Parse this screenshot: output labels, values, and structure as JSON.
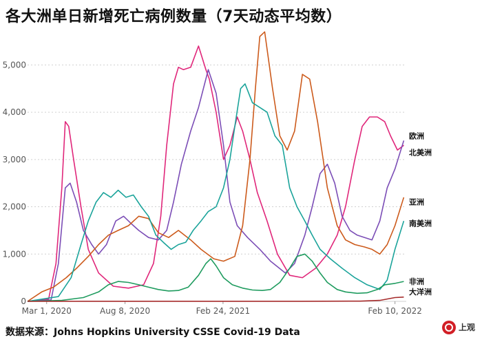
{
  "title": "各大洲单日新增死亡病例数量（7天动态平均数）",
  "source": "数据来源：Johns Hopkins University CSSE Covid-19 Data",
  "logo": {
    "text": "上观"
  },
  "chart_data": {
    "type": "line",
    "title": "各大洲单日新增死亡病例数量（7天动态平均数）",
    "xlabel": "",
    "ylabel": "",
    "ylim": [
      0,
      5500
    ],
    "yticks": [
      0,
      1000,
      2000,
      3000,
      4000,
      5000
    ],
    "ytick_labels": [
      "0",
      "1,000",
      "2,000",
      "3,000",
      "4,000",
      "5,000"
    ],
    "xlim": [
      "2020-01-22",
      "2022-03-05"
    ],
    "xticks": [
      "2020-03-01",
      "2020-08-08",
      "2021-02-24",
      "2022-02-10"
    ],
    "xtick_labels": [
      "Mar 1, 2020",
      "Aug 8, 2020",
      "Feb 24, 2021",
      "Feb 10, 2022"
    ],
    "grid": true,
    "series": [
      {
        "name": "欧洲",
        "color": "#e0267a",
        "x": [
          "2020-01-22",
          "2020-03-05",
          "2020-03-20",
          "2020-04-01",
          "2020-04-08",
          "2020-04-15",
          "2020-04-25",
          "2020-05-10",
          "2020-05-25",
          "2020-06-15",
          "2020-07-15",
          "2020-08-15",
          "2020-09-15",
          "2020-10-05",
          "2020-10-20",
          "2020-11-01",
          "2020-11-15",
          "2020-11-25",
          "2020-12-05",
          "2020-12-20",
          "2021-01-05",
          "2021-01-20",
          "2021-01-27",
          "2021-02-10",
          "2021-02-25",
          "2021-03-10",
          "2021-03-25",
          "2021-04-05",
          "2021-04-20",
          "2021-05-05",
          "2021-05-25",
          "2021-06-15",
          "2021-07-10",
          "2021-08-05",
          "2021-09-01",
          "2021-09-25",
          "2021-10-15",
          "2021-11-01",
          "2021-11-20",
          "2021-12-05",
          "2021-12-20",
          "2022-01-05",
          "2022-01-20",
          "2022-02-01",
          "2022-02-15",
          "2022-02-28"
        ],
        "y": [
          0,
          50,
          800,
          2400,
          3800,
          3700,
          3000,
          2000,
          1100,
          600,
          320,
          280,
          350,
          800,
          1800,
          3300,
          4600,
          4950,
          4900,
          4950,
          5400,
          4900,
          4700,
          4000,
          3000,
          3300,
          3900,
          3600,
          3000,
          2300,
          1700,
          1000,
          550,
          500,
          700,
          1000,
          1400,
          2000,
          3000,
          3700,
          3900,
          3900,
          3800,
          3500,
          3200,
          3300
        ]
      },
      {
        "name": "北美洲",
        "color": "#7b4db6",
        "x": [
          "2020-01-22",
          "2020-03-10",
          "2020-03-25",
          "2020-04-08",
          "2020-04-18",
          "2020-05-01",
          "2020-05-15",
          "2020-06-01",
          "2020-06-15",
          "2020-07-01",
          "2020-07-20",
          "2020-08-05",
          "2020-08-20",
          "2020-09-05",
          "2020-09-25",
          "2020-10-15",
          "2020-11-01",
          "2020-11-15",
          "2020-12-01",
          "2020-12-20",
          "2021-01-05",
          "2021-01-15",
          "2021-01-25",
          "2021-02-10",
          "2021-02-25",
          "2021-03-10",
          "2021-03-25",
          "2021-04-15",
          "2021-05-10",
          "2021-06-01",
          "2021-07-01",
          "2021-07-20",
          "2021-08-10",
          "2021-08-25",
          "2021-09-10",
          "2021-09-25",
          "2021-10-10",
          "2021-10-25",
          "2021-11-10",
          "2021-11-25",
          "2021-12-10",
          "2021-12-25",
          "2022-01-10",
          "2022-01-25",
          "2022-02-10",
          "2022-02-28"
        ],
        "y": [
          0,
          30,
          800,
          2400,
          2500,
          2100,
          1500,
          1200,
          1000,
          1200,
          1700,
          1800,
          1650,
          1500,
          1350,
          1300,
          1500,
          2100,
          2900,
          3600,
          4100,
          4500,
          4900,
          4400,
          3300,
          2100,
          1600,
          1350,
          1100,
          850,
          600,
          800,
          1400,
          2000,
          2700,
          2900,
          2500,
          1800,
          1500,
          1400,
          1350,
          1300,
          1700,
          2400,
          2800,
          3400
        ]
      },
      {
        "name": "亚洲",
        "color": "#cc5a1b",
        "x": [
          "2020-01-22",
          "2020-02-20",
          "2020-03-15",
          "2020-04-10",
          "2020-05-01",
          "2020-05-25",
          "2020-06-15",
          "2020-07-05",
          "2020-07-25",
          "2020-08-15",
          "2020-09-05",
          "2020-09-25",
          "2020-10-15",
          "2020-11-05",
          "2020-11-25",
          "2020-12-20",
          "2021-01-10",
          "2021-02-05",
          "2021-02-25",
          "2021-03-20",
          "2021-04-05",
          "2021-04-20",
          "2021-05-01",
          "2021-05-10",
          "2021-05-20",
          "2021-06-05",
          "2021-06-20",
          "2021-07-05",
          "2021-07-20",
          "2021-08-05",
          "2021-08-20",
          "2021-09-05",
          "2021-09-25",
          "2021-10-15",
          "2021-11-01",
          "2021-11-20",
          "2021-12-10",
          "2021-12-25",
          "2022-01-10",
          "2022-01-25",
          "2022-02-10",
          "2022-02-28"
        ],
        "y": [
          0,
          200,
          300,
          500,
          700,
          950,
          1200,
          1400,
          1500,
          1600,
          1800,
          1750,
          1450,
          1350,
          1500,
          1300,
          1100,
          900,
          850,
          950,
          1600,
          3000,
          4500,
          5600,
          5700,
          4500,
          3500,
          3200,
          3600,
          4800,
          4700,
          3800,
          2400,
          1600,
          1300,
          1200,
          1150,
          1100,
          1000,
          1200,
          1600,
          2200
        ]
      },
      {
        "name": "南美洲",
        "color": "#1aa39a",
        "x": [
          "2020-01-22",
          "2020-03-25",
          "2020-04-20",
          "2020-05-10",
          "2020-05-25",
          "2020-06-10",
          "2020-06-25",
          "2020-07-10",
          "2020-07-25",
          "2020-08-10",
          "2020-08-25",
          "2020-09-10",
          "2020-09-25",
          "2020-10-10",
          "2020-10-25",
          "2020-11-10",
          "2020-11-25",
          "2020-12-10",
          "2020-12-25",
          "2021-01-10",
          "2021-01-25",
          "2021-02-10",
          "2021-02-25",
          "2021-03-10",
          "2021-03-20",
          "2021-04-01",
          "2021-04-10",
          "2021-04-25",
          "2021-05-10",
          "2021-05-25",
          "2021-06-10",
          "2021-06-25",
          "2021-07-10",
          "2021-07-25",
          "2021-08-10",
          "2021-08-25",
          "2021-09-10",
          "2021-10-01",
          "2021-10-25",
          "2021-11-20",
          "2021-12-15",
          "2022-01-10",
          "2022-01-25",
          "2022-02-10",
          "2022-02-28"
        ],
        "y": [
          0,
          100,
          500,
          1200,
          1700,
          2100,
          2300,
          2200,
          2350,
          2200,
          2250,
          2000,
          1800,
          1400,
          1250,
          1100,
          1200,
          1250,
          1500,
          1700,
          1900,
          2000,
          2400,
          3000,
          3700,
          4500,
          4600,
          4200,
          4100,
          4000,
          3500,
          3300,
          2400,
          2000,
          1700,
          1400,
          1100,
          900,
          700,
          500,
          350,
          250,
          450,
          1100,
          1700
        ]
      },
      {
        "name": "非洲",
        "color": "#1e9b5e",
        "x": [
          "2020-01-22",
          "2020-04-01",
          "2020-05-15",
          "2020-06-15",
          "2020-07-05",
          "2020-07-25",
          "2020-08-15",
          "2020-09-05",
          "2020-09-25",
          "2020-10-15",
          "2020-11-05",
          "2020-11-25",
          "2020-12-15",
          "2021-01-05",
          "2021-01-20",
          "2021-01-30",
          "2021-02-10",
          "2021-02-25",
          "2021-03-15",
          "2021-04-05",
          "2021-04-25",
          "2021-05-15",
          "2021-06-01",
          "2021-06-20",
          "2021-07-10",
          "2021-07-25",
          "2021-08-10",
          "2021-08-25",
          "2021-09-10",
          "2021-09-25",
          "2021-10-15",
          "2021-11-01",
          "2021-11-25",
          "2021-12-15",
          "2022-01-05",
          "2022-01-20",
          "2022-02-10",
          "2022-02-28"
        ],
        "y": [
          0,
          20,
          80,
          200,
          350,
          420,
          400,
          350,
          300,
          250,
          220,
          230,
          300,
          550,
          800,
          900,
          750,
          500,
          350,
          280,
          240,
          230,
          250,
          400,
          700,
          950,
          1000,
          850,
          600,
          400,
          250,
          200,
          170,
          180,
          250,
          350,
          380,
          420
        ]
      },
      {
        "name": "大洋洲",
        "color": "#a52a2a",
        "x": [
          "2020-01-22",
          "2020-06-01",
          "2021-01-01",
          "2021-08-01",
          "2021-12-01",
          "2022-01-10",
          "2022-01-25",
          "2022-02-10",
          "2022-02-28"
        ],
        "y": [
          0,
          1,
          2,
          2,
          5,
          20,
          50,
          80,
          90
        ]
      }
    ]
  }
}
